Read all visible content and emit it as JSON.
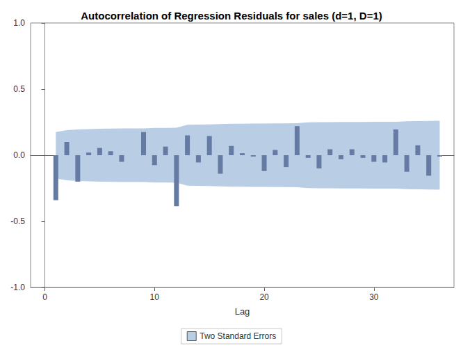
{
  "chart_data": {
    "type": "bar",
    "title": "Autocorrelation of Regression Residuals for sales (d=1, D=1)",
    "xlabel": "Lag",
    "x": [
      1,
      2,
      3,
      4,
      5,
      6,
      7,
      8,
      9,
      10,
      11,
      12,
      13,
      14,
      15,
      16,
      17,
      18,
      19,
      20,
      21,
      22,
      23,
      24,
      25,
      26,
      27,
      28,
      29,
      30,
      31,
      32,
      33,
      34,
      35,
      36
    ],
    "values": [
      -0.34,
      0.1,
      -0.2,
      0.02,
      0.055,
      0.03,
      -0.05,
      0.0,
      0.175,
      -0.075,
      0.065,
      -0.385,
      0.15,
      -0.055,
      0.145,
      -0.14,
      0.07,
      0.015,
      -0.01,
      -0.12,
      0.04,
      -0.09,
      0.22,
      -0.02,
      -0.1,
      0.045,
      -0.03,
      0.045,
      -0.02,
      -0.05,
      -0.055,
      0.195,
      -0.125,
      0.075,
      -0.155,
      -0.01
    ],
    "color": "#667ba3",
    "xlim": [
      -1.3,
      37.3
    ],
    "xticks": [
      0,
      10,
      20,
      30
    ],
    "ylim": [
      -1,
      1
    ],
    "yticks": [
      {
        "value": -1,
        "label": "-1.0"
      },
      {
        "value": -0.5,
        "label": "-0.5"
      },
      {
        "value": 0,
        "label": "0.0"
      },
      {
        "value": 0.5,
        "label": "0.5"
      },
      {
        "value": 1,
        "label": "1.0"
      }
    ],
    "grid": false,
    "legend": "bottom",
    "band": {
      "name": "Two Standard Errors",
      "color": "#b9cde5",
      "upper": [
        0.175,
        0.19,
        0.195,
        0.198,
        0.2,
        0.201,
        0.202,
        0.202,
        0.203,
        0.206,
        0.207,
        0.208,
        0.23,
        0.232,
        0.233,
        0.236,
        0.238,
        0.238,
        0.239,
        0.239,
        0.241,
        0.241,
        0.242,
        0.249,
        0.25,
        0.25,
        0.251,
        0.251,
        0.251,
        0.252,
        0.252,
        0.253,
        0.257,
        0.258,
        0.259,
        0.26
      ],
      "lower": [
        -0.175,
        -0.19,
        -0.195,
        -0.198,
        -0.2,
        -0.201,
        -0.202,
        -0.202,
        -0.203,
        -0.206,
        -0.207,
        -0.208,
        -0.23,
        -0.232,
        -0.233,
        -0.236,
        -0.238,
        -0.238,
        -0.239,
        -0.239,
        -0.241,
        -0.241,
        -0.242,
        -0.249,
        -0.25,
        -0.25,
        -0.251,
        -0.251,
        -0.251,
        -0.252,
        -0.252,
        -0.253,
        -0.257,
        -0.258,
        -0.259,
        -0.26
      ]
    }
  }
}
